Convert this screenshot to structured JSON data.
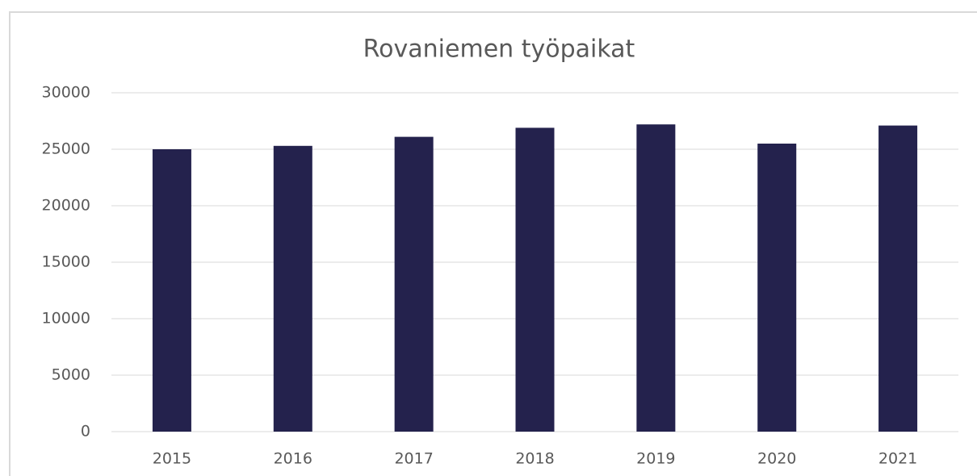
{
  "chart_data": {
    "type": "bar",
    "title": "Rovaniemen työpaikat",
    "categories": [
      "2015",
      "2016",
      "2017",
      "2018",
      "2019",
      "2020",
      "2021"
    ],
    "values": [
      25000,
      25300,
      26100,
      26900,
      27200,
      25500,
      27100
    ],
    "color": "#24224d",
    "ylim": [
      0,
      30000
    ],
    "yticks": [
      0,
      5000,
      10000,
      15000,
      20000,
      25000,
      30000
    ],
    "grid": true
  }
}
